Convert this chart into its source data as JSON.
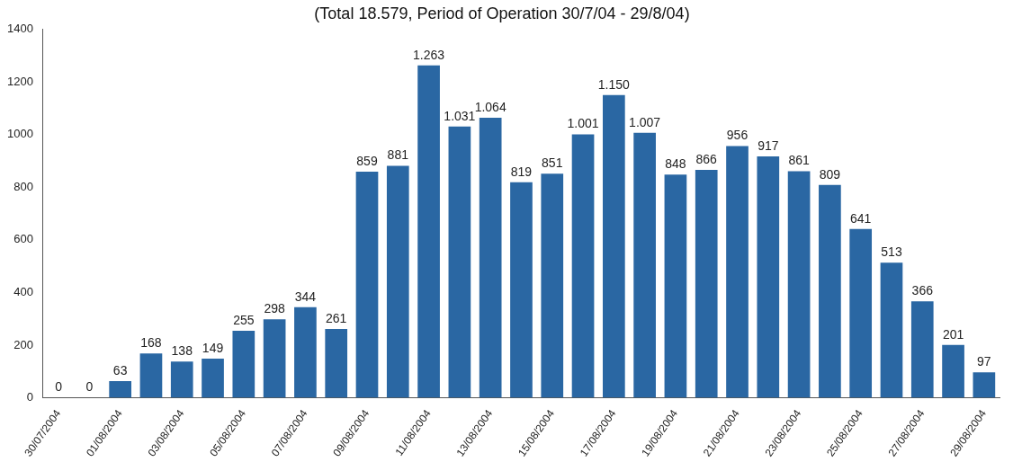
{
  "chart_data": {
    "type": "bar",
    "title": "(Total 18.579, Period of Operation 30/7/04 - 29/8/04)",
    "categories": [
      "30/07/2004",
      null,
      "01/08/2004",
      null,
      "03/08/2004",
      null,
      "05/08/2004",
      null,
      "07/08/2004",
      null,
      "09/08/2004",
      null,
      "11/08/2004",
      null,
      "13/08/2004",
      null,
      "15/08/2004",
      null,
      "17/08/2004",
      null,
      "19/08/2004",
      null,
      "21/08/2004",
      null,
      "23/08/2004",
      null,
      "25/08/2004",
      null,
      "27/08/2004",
      null,
      "29/08/2004"
    ],
    "values": [
      0,
      0,
      63,
      168,
      138,
      149,
      255,
      298,
      344,
      261,
      859,
      881,
      1263,
      1031,
      1064,
      819,
      851,
      1001,
      1150,
      1007,
      848,
      866,
      956,
      917,
      861,
      809,
      641,
      513,
      366,
      201,
      97
    ],
    "value_labels": [
      "0",
      "0",
      "63",
      "168",
      "138",
      "149",
      "255",
      "298",
      "344",
      "261",
      "859",
      "881",
      "1.263",
      "1.031",
      "1.064",
      "819",
      "851",
      "1.001",
      "1.150",
      "1.007",
      "848",
      "866",
      "956",
      "917",
      "861",
      "809",
      "641",
      "513",
      "366",
      "201",
      "97"
    ],
    "color": "#2a67a3",
    "ylim": [
      0,
      1400
    ],
    "yticks": [
      0,
      200,
      400,
      600,
      800,
      1000,
      1200,
      1400
    ],
    "grid": false,
    "legend": false
  }
}
